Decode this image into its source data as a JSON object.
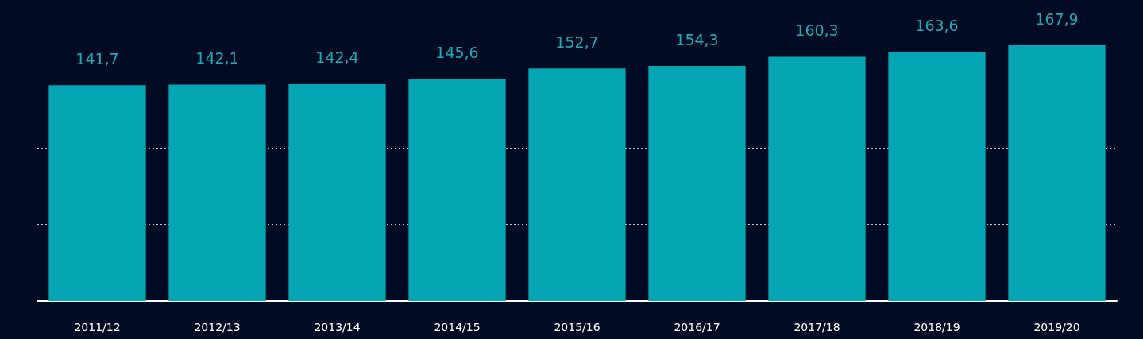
{
  "chart_data": {
    "type": "bar",
    "categories": [
      "2011/12",
      "2012/13",
      "2013/14",
      "2014/15",
      "2015/16",
      "2016/17",
      "2017/18",
      "2018/19",
      "2019/20"
    ],
    "values": [
      141.7,
      142.1,
      142.4,
      145.6,
      152.7,
      154.3,
      160.3,
      163.6,
      167.9
    ],
    "value_labels": [
      "141,7",
      "142,1",
      "142,4",
      "145,6",
      "152,7",
      "154,3",
      "160,3",
      "163,6",
      "167,9"
    ],
    "color": "#05a6b3",
    "ref_lines": [
      {
        "axis": "y",
        "value": 50,
        "color": "#ffffff",
        "line_style": "dotted"
      },
      {
        "axis": "y",
        "value": 100,
        "color": "#ffffff",
        "line_style": "dotted"
      }
    ],
    "tick_labels": "x"
  }
}
